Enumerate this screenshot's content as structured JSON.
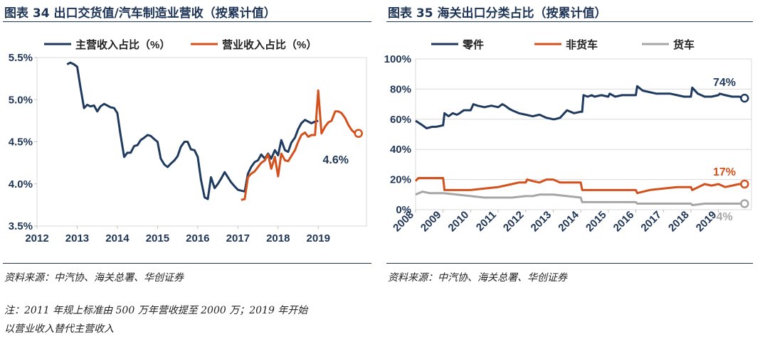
{
  "left": {
    "title": "图表 34   出口交货值/汽车制造业营收（按累计值）",
    "source": "资料来源：中汽协、海关总署、华创证券",
    "note_line1": "注：2011 年规上标准由 500 万年营收提至 2000 万；2019 年开始",
    "note_line2": "以营业收入替代主营收入"
  },
  "right": {
    "title": "图表 35   海关出口分类占比（按累计值）",
    "source": "资料来源：中汽协、海关总署、华创证券"
  },
  "colors": {
    "navy": "#1f3a5f",
    "orange": "#d4501c",
    "gray": "#a6a6a6"
  },
  "chart_data": [
    {
      "type": "line",
      "title": "出口交货值/汽车制造业营收（按累计值）",
      "xlim": [
        2012,
        2020.2
      ],
      "ylim": [
        3.5,
        5.5
      ],
      "x_ticks": [
        2012,
        2013,
        2014,
        2015,
        2016,
        2017,
        2018,
        2019
      ],
      "x_tick_labels": [
        "2012",
        "2013",
        "2014",
        "2015",
        "2016",
        "2017",
        "2018",
        "2019"
      ],
      "y_ticks": [
        3.5,
        4.0,
        4.5,
        5.0,
        5.5
      ],
      "y_tick_labels": [
        "3.5%",
        "4.0%",
        "4.5%",
        "5.0%",
        "5.5%"
      ],
      "end_label": "4.6%",
      "series": [
        {
          "name": "主营收入占比（%）",
          "color": "#1f3a5f",
          "x": [
            2012.75,
            2012.83,
            2012.92,
            2013.0,
            2013.08,
            2013.17,
            2013.25,
            2013.33,
            2013.42,
            2013.5,
            2013.58,
            2013.67,
            2013.75,
            2013.83,
            2013.92,
            2014.0,
            2014.08,
            2014.17,
            2014.25,
            2014.33,
            2014.42,
            2014.5,
            2014.58,
            2014.67,
            2014.75,
            2014.83,
            2014.92,
            2015.0,
            2015.08,
            2015.17,
            2015.25,
            2015.33,
            2015.42,
            2015.5,
            2015.58,
            2015.67,
            2015.75,
            2015.83,
            2015.92,
            2016.0,
            2016.08,
            2016.17,
            2016.25,
            2016.33,
            2016.42,
            2016.5,
            2016.58,
            2016.67,
            2016.75,
            2016.83,
            2016.92,
            2017.0,
            2017.08,
            2017.17,
            2017.25,
            2017.33,
            2017.42,
            2017.5,
            2017.58,
            2017.67,
            2017.75,
            2017.83,
            2017.92,
            2018.0,
            2018.08,
            2018.17,
            2018.25,
            2018.33,
            2018.42,
            2018.5,
            2018.58,
            2018.67,
            2018.75,
            2018.83,
            2018.92,
            2019.0
          ],
          "values": [
            5.42,
            5.44,
            5.42,
            5.39,
            5.15,
            4.9,
            4.94,
            4.92,
            4.93,
            4.86,
            4.92,
            4.95,
            4.93,
            4.91,
            4.9,
            4.84,
            4.58,
            4.32,
            4.37,
            4.37,
            4.45,
            4.46,
            4.52,
            4.55,
            4.58,
            4.57,
            4.53,
            4.5,
            4.3,
            4.23,
            4.2,
            4.24,
            4.28,
            4.33,
            4.44,
            4.5,
            4.5,
            4.41,
            4.4,
            4.32,
            4.05,
            3.84,
            3.82,
            4.08,
            3.95,
            4.0,
            4.06,
            4.14,
            4.08,
            4.02,
            3.97,
            3.93,
            3.92,
            3.91,
            4.12,
            4.2,
            4.26,
            4.28,
            4.35,
            4.3,
            4.36,
            4.3,
            4.4,
            4.34,
            4.52,
            4.4,
            4.38,
            4.49,
            4.55,
            4.65,
            4.72,
            4.76,
            4.74,
            4.72,
            4.74,
            4.75
          ]
        },
        {
          "name": "营业收入占比（%）",
          "color": "#d4501c",
          "x": [
            2017.08,
            2017.17,
            2017.25,
            2017.33,
            2017.42,
            2017.5,
            2017.58,
            2017.67,
            2017.75,
            2017.83,
            2017.92,
            2018.0,
            2018.08,
            2018.17,
            2018.25,
            2018.33,
            2018.42,
            2018.5,
            2018.58,
            2018.67,
            2018.75,
            2018.83,
            2018.92,
            2019.0,
            2019.08,
            2019.17,
            2019.25,
            2019.33,
            2019.42,
            2019.5,
            2019.58,
            2019.67,
            2019.75,
            2019.83,
            2019.92,
            2020.0
          ],
          "values": [
            3.81,
            3.82,
            4.08,
            4.12,
            4.15,
            4.2,
            4.25,
            4.28,
            4.35,
            4.18,
            4.32,
            4.09,
            4.36,
            4.28,
            4.27,
            4.33,
            4.4,
            4.5,
            4.58,
            4.61,
            4.56,
            4.58,
            4.58,
            5.11,
            4.6,
            4.68,
            4.73,
            4.75,
            4.86,
            4.86,
            4.84,
            4.78,
            4.7,
            4.64,
            4.6,
            4.6
          ]
        }
      ]
    },
    {
      "type": "line",
      "title": "海关出口分类占比（按累计值）",
      "xlim": [
        2008,
        2020.2
      ],
      "ylim": [
        0,
        100
      ],
      "x_ticks": [
        2008,
        2009,
        2010,
        2011,
        2012,
        2013,
        2014,
        2015,
        2016,
        2017,
        2018,
        2019
      ],
      "x_tick_labels": [
        "2008",
        "2009",
        "2010",
        "2011",
        "2012",
        "2013",
        "2014",
        "2015",
        "2016",
        "2017",
        "2018",
        "2019"
      ],
      "y_ticks": [
        0,
        20,
        40,
        60,
        80,
        100
      ],
      "y_tick_labels": [
        "0%",
        "20%",
        "40%",
        "60%",
        "80%",
        "100%"
      ],
      "series": [
        {
          "name": "零件",
          "color": "#1f3a5f",
          "end_label": "74%",
          "x": [
            2008.0,
            2008.25,
            2008.4,
            2008.6,
            2008.75,
            2009.0,
            2009.05,
            2009.2,
            2009.35,
            2009.5,
            2009.6,
            2009.75,
            2010.0,
            2010.1,
            2010.25,
            2010.5,
            2010.75,
            2011.0,
            2011.15,
            2011.25,
            2011.4,
            2011.5,
            2011.75,
            2012.0,
            2012.25,
            2012.5,
            2012.75,
            2013.0,
            2013.05,
            2013.25,
            2013.5,
            2013.75,
            2014.0,
            2014.05,
            2014.1,
            2014.25,
            2014.4,
            2014.5,
            2014.75,
            2015.0,
            2015.05,
            2015.25,
            2015.5,
            2015.75,
            2016.0,
            2016.05,
            2016.25,
            2016.5,
            2016.75,
            2017.0,
            2017.25,
            2017.5,
            2017.75,
            2018.0,
            2018.05,
            2018.25,
            2018.5,
            2018.75,
            2019.0,
            2019.05,
            2019.25,
            2019.5,
            2019.75,
            2019.95
          ],
          "values": [
            59,
            56,
            54,
            55,
            55,
            56,
            64,
            62,
            64,
            63,
            64,
            66,
            66,
            70,
            69,
            68,
            69,
            68,
            70,
            69,
            67,
            66,
            64,
            63,
            62,
            63,
            61,
            60,
            60,
            61,
            66,
            64,
            65,
            65,
            76,
            75,
            76,
            75,
            76,
            75,
            77,
            75,
            76,
            76,
            76,
            82,
            79,
            78,
            77,
            77,
            77,
            76,
            75,
            75,
            81,
            77,
            75,
            75,
            76,
            77,
            76,
            75,
            75,
            74
          ]
        },
        {
          "name": "非货车",
          "color": "#d4501c",
          "end_label": "17%",
          "x": [
            2008.0,
            2008.1,
            2008.5,
            2009.0,
            2009.05,
            2009.5,
            2010.0,
            2010.5,
            2011.0,
            2011.25,
            2011.5,
            2011.75,
            2012.0,
            2012.05,
            2012.25,
            2012.5,
            2012.75,
            2013.0,
            2013.25,
            2013.5,
            2013.75,
            2014.0,
            2014.05,
            2014.5,
            2015.0,
            2015.5,
            2016.0,
            2016.05,
            2016.5,
            2017.0,
            2017.5,
            2018.0,
            2018.05,
            2018.5,
            2018.75,
            2019.0,
            2019.25,
            2019.5,
            2019.75,
            2019.95
          ],
          "values": [
            19,
            21,
            21,
            21,
            13,
            13,
            13,
            14,
            15,
            16,
            17,
            18,
            18,
            20,
            19,
            18,
            20,
            20,
            18,
            18,
            18,
            18,
            13,
            13,
            13,
            13,
            13,
            11,
            13,
            14,
            15,
            15,
            13,
            17,
            16,
            17,
            15,
            16,
            17,
            17
          ]
        },
        {
          "name": "货车",
          "color": "#a6a6a6",
          "end_label": "4%",
          "x": [
            2008.0,
            2008.25,
            2008.5,
            2009.0,
            2009.5,
            2010.0,
            2010.5,
            2011.0,
            2011.5,
            2012.0,
            2012.25,
            2012.5,
            2012.75,
            2013.0,
            2013.5,
            2014.0,
            2014.05,
            2014.5,
            2015.0,
            2015.5,
            2016.0,
            2016.05,
            2016.5,
            2017.0,
            2017.5,
            2018.0,
            2018.05,
            2018.5,
            2019.0,
            2019.5,
            2019.95
          ],
          "values": [
            10,
            12,
            11,
            11,
            10,
            9,
            8,
            8,
            8,
            9,
            9,
            10,
            10,
            10,
            9,
            8,
            5,
            5,
            5,
            5,
            5,
            4,
            4,
            4,
            4,
            4,
            3,
            4,
            4,
            4,
            4
          ]
        }
      ]
    }
  ]
}
